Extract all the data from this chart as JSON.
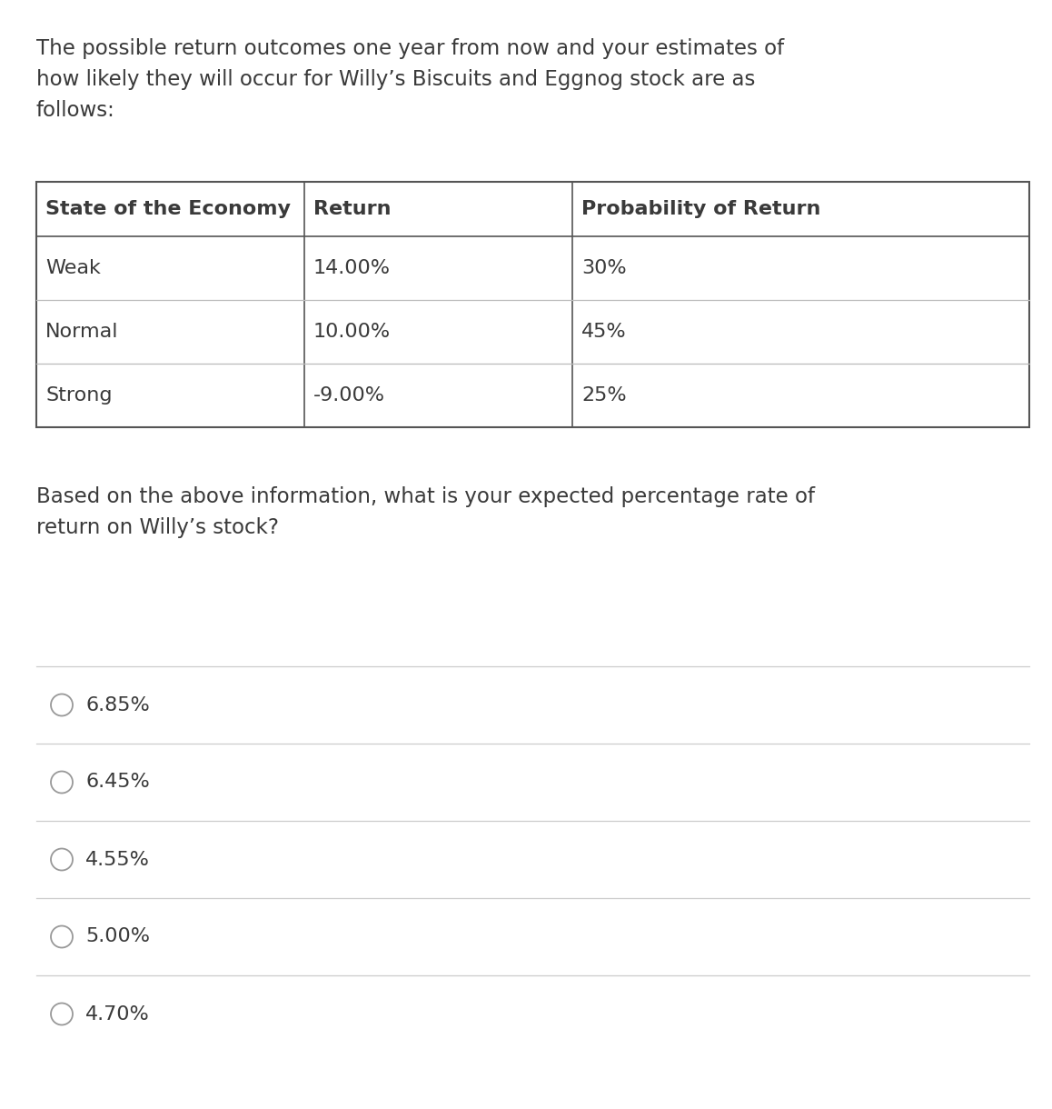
{
  "intro_text_lines": [
    "The possible return outcomes one year from now and your estimates of",
    "how likely they will occur for Willy’s Biscuits and Eggnog stock are as",
    "follows:"
  ],
  "table_headers": [
    "State of the Economy",
    "Return",
    "Probability of Return"
  ],
  "table_rows": [
    [
      "Weak",
      "14.00%",
      "30%"
    ],
    [
      "Normal",
      "10.00%",
      "45%"
    ],
    [
      "Strong",
      "-9.00%",
      "25%"
    ]
  ],
  "question_text_lines": [
    "Based on the above information, what is your expected percentage rate of",
    "return on Willy’s stock?"
  ],
  "answer_options": [
    "6.85%",
    "6.45%",
    "4.55%",
    "5.00%",
    "4.70%"
  ],
  "bg_color": "#ffffff",
  "text_color": "#3a3a3a",
  "table_outer_color": "#555555",
  "table_inner_color": "#bbbbbb",
  "option_line_color": "#cccccc",
  "intro_fontsize": 16.5,
  "question_fontsize": 16.5,
  "table_header_fontsize": 16,
  "table_body_fontsize": 16,
  "option_fontsize": 16,
  "radio_color": "#999999",
  "fig_width": 11.58,
  "fig_height": 12.2,
  "dpi": 100
}
